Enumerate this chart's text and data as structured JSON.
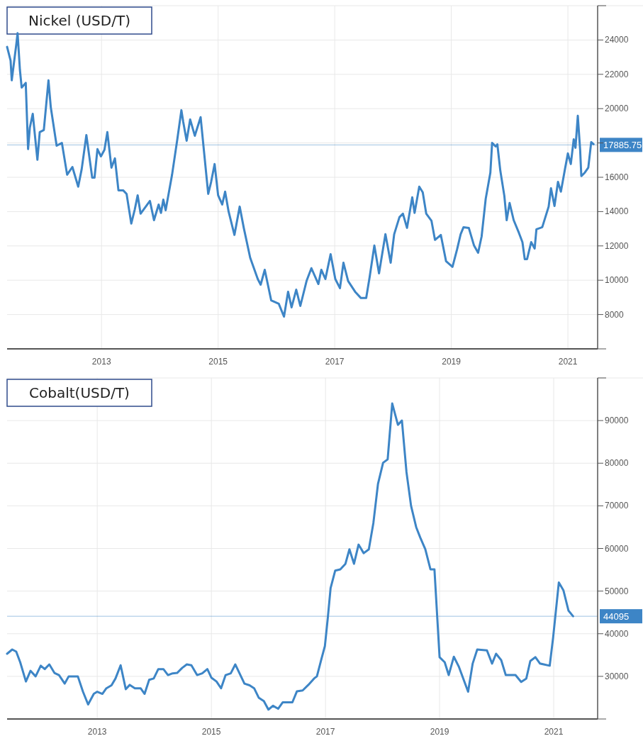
{
  "chart_data": [
    {
      "type": "line",
      "title": "Nickel (USD/T)",
      "xlim": [
        2011.38,
        2021.51
      ],
      "xticks": [
        2013,
        2015,
        2017,
        2019,
        2021
      ],
      "ylim": [
        6000,
        26000
      ],
      "yticks": [
        8000,
        10000,
        12000,
        14000,
        16000,
        {
          "value": 18000,
          "label": null
        },
        20000,
        22000,
        24000
      ],
      "grid": true,
      "line_style": "solid",
      "marker": "none",
      "ref_lines": [
        {
          "axis": "y",
          "value": 17885.75,
          "label": "17885.75",
          "color": "#3d85c6"
        }
      ],
      "series": [
        {
          "color": "#3d85c6",
          "x": [
            2011.38,
            2011.44,
            2011.46,
            2011.54,
            2011.56,
            2011.6,
            2011.63,
            2011.7,
            2011.74,
            2011.77,
            2011.82,
            2011.9,
            2011.94,
            2012.01,
            2012.09,
            2012.13,
            2012.23,
            2012.32,
            2012.41,
            2012.5,
            2012.6,
            2012.66,
            2012.74,
            2012.84,
            2012.88,
            2012.93,
            2012.99,
            2013.05,
            2013.1,
            2013.17,
            2013.23,
            2013.29,
            2013.37,
            2013.43,
            2013.51,
            2013.57,
            2013.62,
            2013.67,
            2013.83,
            2013.9,
            2013.98,
            2014.02,
            2014.06,
            2014.1,
            2014.21,
            2014.3,
            2014.37,
            2014.4,
            2014.46,
            2014.52,
            2014.6,
            2014.7,
            2014.76,
            2014.83,
            2014.88,
            2014.94,
            2015.0,
            2015.07,
            2015.12,
            2015.18,
            2015.28,
            2015.37,
            2015.44,
            2015.55,
            2015.68,
            2015.73,
            2015.8,
            2015.91,
            2016.04,
            2016.13,
            2016.2,
            2016.26,
            2016.34,
            2016.41,
            2016.52,
            2016.6,
            2016.72,
            2016.77,
            2016.84,
            2016.93,
            2017.01,
            2017.09,
            2017.15,
            2017.23,
            2017.35,
            2017.45,
            2017.54,
            2017.6,
            2017.68,
            2017.76,
            2017.87,
            2017.96,
            2018.02,
            2018.11,
            2018.17,
            2018.24,
            2018.33,
            2018.37,
            2018.45,
            2018.51,
            2018.57,
            2018.66,
            2018.72,
            2018.82,
            2018.91,
            2019.02,
            2019.1,
            2019.16,
            2019.21,
            2019.3,
            2019.39,
            2019.46,
            2019.52,
            2019.59,
            2019.67,
            2019.7,
            2019.76,
            2019.79,
            2019.84,
            2019.91,
            2019.95,
            2020.0,
            2020.07,
            2020.16,
            2020.22,
            2020.26,
            2020.3,
            2020.37,
            2020.43,
            2020.46,
            2020.56,
            2020.67,
            2020.71,
            2020.77,
            2020.83,
            2020.88,
            2020.95,
            2021.0,
            2021.05,
            2021.1,
            2021.13,
            2021.17,
            2021.21,
            2021.23,
            2021.29,
            2021.35,
            2021.4,
            2021.44
          ],
          "values": [
            23600,
            22800,
            21650,
            23800,
            24400,
            22260,
            21230,
            21500,
            17640,
            18880,
            19700,
            17020,
            18630,
            18750,
            21650,
            20070,
            17840,
            18000,
            16150,
            16600,
            15450,
            16480,
            18460,
            15980,
            15980,
            17640,
            17220,
            17600,
            18630,
            16560,
            17100,
            15240,
            15240,
            15030,
            13300,
            14120,
            14950,
            13880,
            14620,
            13500,
            14410,
            13920,
            14700,
            14080,
            16150,
            18210,
            19910,
            19250,
            18130,
            19370,
            18420,
            19500,
            17430,
            15030,
            15730,
            16770,
            14950,
            14410,
            15160,
            14000,
            12640,
            14290,
            13050,
            11310,
            10070,
            9740,
            10610,
            8830,
            8630,
            7880,
            9330,
            8420,
            9450,
            8500,
            9990,
            10700,
            9780,
            10610,
            10070,
            11520,
            10070,
            9540,
            11020,
            9950,
            9330,
            8960,
            8960,
            10200,
            12020,
            10400,
            12680,
            11020,
            12680,
            13670,
            13880,
            13050,
            14830,
            13920,
            15450,
            15120,
            13880,
            13460,
            12350,
            12640,
            11110,
            10780,
            11810,
            12680,
            13090,
            13050,
            12020,
            11600,
            12550,
            14740,
            16270,
            18000,
            17800,
            17920,
            16400,
            14910,
            13500,
            14500,
            13500,
            12760,
            12220,
            11230,
            11230,
            12220,
            11850,
            12970,
            13090,
            14290,
            15360,
            14330,
            15730,
            15160,
            16480,
            17390,
            16770,
            18210,
            17720,
            19580,
            17600,
            16070,
            16270,
            16560,
            18050,
            17930
          ]
        }
      ]
    },
    {
      "type": "line",
      "title": "Cobalt(USD/T)",
      "xlim": [
        2011.42,
        2021.77
      ],
      "xticks": [
        2013,
        2015,
        2017,
        2019,
        2021
      ],
      "ylim": [
        20000,
        100000
      ],
      "yticks": [
        30000,
        40000,
        50000,
        60000,
        70000,
        80000,
        90000
      ],
      "grid": true,
      "line_style": "solid",
      "marker": "none",
      "ref_lines": [
        {
          "axis": "y",
          "value": 44095,
          "label": "44095",
          "color": "#3d85c6"
        }
      ],
      "series": [
        {
          "color": "#3d85c6",
          "x": [
            2011.42,
            2011.51,
            2011.58,
            2011.65,
            2011.75,
            2011.83,
            2011.92,
            2012.01,
            2012.08,
            2012.16,
            2012.25,
            2012.33,
            2012.43,
            2012.5,
            2012.66,
            2012.75,
            2012.84,
            2012.94,
            2013.0,
            2013.09,
            2013.16,
            2013.25,
            2013.32,
            2013.41,
            2013.5,
            2013.57,
            2013.66,
            2013.76,
            2013.83,
            2013.91,
            2013.99,
            2014.07,
            2014.16,
            2014.24,
            2014.32,
            2014.4,
            2014.49,
            2014.57,
            2014.65,
            2014.75,
            2014.84,
            2014.93,
            2015.0,
            2015.09,
            2015.17,
            2015.25,
            2015.34,
            2015.42,
            2015.58,
            2015.67,
            2015.75,
            2015.83,
            2015.92,
            2016.0,
            2016.08,
            2016.17,
            2016.25,
            2016.42,
            2016.5,
            2016.6,
            2016.7,
            2016.8,
            2016.85,
            2016.93,
            2016.99,
            2017.04,
            2017.09,
            2017.17,
            2017.26,
            2017.35,
            2017.42,
            2017.5,
            2017.58,
            2017.67,
            2017.76,
            2017.84,
            2017.92,
            2018.01,
            2018.09,
            2018.17,
            2018.27,
            2018.34,
            2018.42,
            2018.5,
            2018.59,
            2018.66,
            2018.75,
            2018.84,
            2018.91,
            2019.0,
            2019.09,
            2019.16,
            2019.25,
            2019.34,
            2019.5,
            2019.58,
            2019.66,
            2019.83,
            2019.92,
            2019.99,
            2020.08,
            2020.16,
            2020.33,
            2020.43,
            2020.52,
            2020.59,
            2020.68,
            2020.76,
            2020.93,
            2020.99,
            2021.09,
            2021.17,
            2021.26,
            2021.34
          ],
          "values": [
            35300,
            36300,
            35800,
            33300,
            28800,
            31300,
            30000,
            32500,
            31700,
            32800,
            30800,
            30300,
            28300,
            30000,
            30000,
            26400,
            23400,
            25900,
            26400,
            25900,
            27200,
            27900,
            29500,
            32600,
            27000,
            28000,
            27200,
            27200,
            25900,
            29200,
            29500,
            31700,
            31700,
            30300,
            30700,
            30800,
            32000,
            32800,
            32600,
            30300,
            30700,
            31700,
            29700,
            28800,
            27200,
            30300,
            30700,
            32800,
            28300,
            27900,
            27200,
            25000,
            24200,
            22200,
            23100,
            22400,
            23900,
            23900,
            26500,
            26700,
            28000,
            29500,
            30000,
            34100,
            37100,
            43600,
            50700,
            54800,
            55100,
            56400,
            59800,
            56400,
            60900,
            58900,
            59800,
            66000,
            75100,
            80100,
            80900,
            94000,
            89000,
            90000,
            77900,
            70000,
            65000,
            62600,
            59800,
            55100,
            55100,
            34500,
            33300,
            30300,
            34600,
            32200,
            26400,
            33000,
            36300,
            36100,
            33000,
            35300,
            33800,
            30300,
            30300,
            28700,
            29500,
            33600,
            34500,
            33000,
            32500,
            39100,
            52000,
            50200,
            45400,
            44100
          ]
        }
      ]
    }
  ]
}
